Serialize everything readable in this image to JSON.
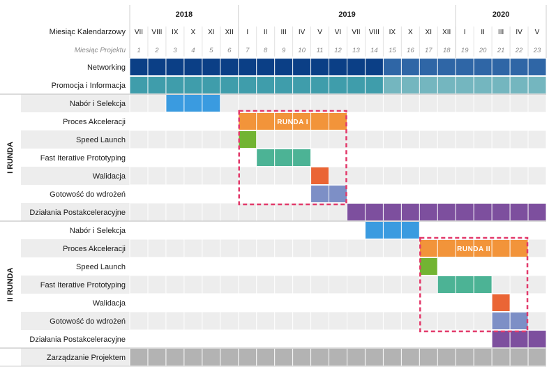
{
  "years": [
    {
      "label": "2018",
      "start": 1,
      "end": 6
    },
    {
      "label": "2019",
      "start": 7,
      "end": 18
    },
    {
      "label": "2020",
      "start": 19,
      "end": 23
    }
  ],
  "header": {
    "calendar_label": "Miesiąc Kalendarzowy",
    "project_label": "Miesiąc Projektu",
    "calendar_months": [
      "VII",
      "VIII",
      "IX",
      "X",
      "XI",
      "XII",
      "I",
      "II",
      "III",
      "IV",
      "V",
      "VI",
      "VII",
      "VIII",
      "IX",
      "X",
      "XI",
      "XII",
      "I",
      "II",
      "III",
      "IV",
      "V"
    ],
    "project_months": [
      "1",
      "2",
      "3",
      "4",
      "5",
      "6",
      "7",
      "8",
      "9",
      "10",
      "11",
      "12",
      "13",
      "14",
      "15",
      "16",
      "17",
      "18",
      "19",
      "20",
      "21",
      "22",
      "23"
    ]
  },
  "groups": [
    {
      "label": "I RUNDA",
      "first_row": 2,
      "last_row": 8
    },
    {
      "label": "II RUNDA",
      "first_row": 9,
      "last_row": 15
    }
  ],
  "rows": [
    {
      "label": "Networking",
      "shade": false
    },
    {
      "label": "Promocja i Informacja",
      "shade": false
    },
    {
      "label": "Nabór i Selekcja",
      "shade": true
    },
    {
      "label": "Proces Akceleracji",
      "shade": false
    },
    {
      "label": "Speed Launch",
      "shade": true
    },
    {
      "label": "Fast Iterative Prototyping",
      "shade": false
    },
    {
      "label": "Walidacja",
      "shade": true
    },
    {
      "label": "Gotowość do wdrożeń",
      "shade": false
    },
    {
      "label": "Działania Postakceleracyjne",
      "shade": true
    },
    {
      "label": "Nabór i Selekcja",
      "shade": false
    },
    {
      "label": "Proces Akceleracji",
      "shade": true
    },
    {
      "label": "Speed Launch",
      "shade": false
    },
    {
      "label": "Fast Iterative Prototyping",
      "shade": true
    },
    {
      "label": "Walidacja",
      "shade": false
    },
    {
      "label": "Gotowość do wdrożeń",
      "shade": true
    },
    {
      "label": "Działania Postakceleracyjne",
      "shade": false
    },
    {
      "label": "Zarządzanie Projektem",
      "shade": true
    }
  ],
  "bars": [
    {
      "row": 0,
      "start": 1,
      "end": 14,
      "color": "#0b3f86"
    },
    {
      "row": 0,
      "start": 15,
      "end": 23,
      "color": "#2f66a6"
    },
    {
      "row": 1,
      "start": 1,
      "end": 14,
      "color": "#3f9dab"
    },
    {
      "row": 1,
      "start": 15,
      "end": 23,
      "color": "#74b6bf"
    },
    {
      "row": 2,
      "start": 3,
      "end": 5,
      "color": "#3a9be0"
    },
    {
      "row": 3,
      "start": 7,
      "end": 12,
      "color": "#f2943a"
    },
    {
      "row": 4,
      "start": 7,
      "end": 7,
      "color": "#72b432"
    },
    {
      "row": 5,
      "start": 8,
      "end": 10,
      "color": "#4cb395"
    },
    {
      "row": 6,
      "start": 11,
      "end": 11,
      "color": "#ea6535"
    },
    {
      "row": 7,
      "start": 11,
      "end": 12,
      "color": "#7d8fc6"
    },
    {
      "row": 8,
      "start": 13,
      "end": 23,
      "color": "#7d4f9e"
    },
    {
      "row": 9,
      "start": 14,
      "end": 16,
      "color": "#3a9be0"
    },
    {
      "row": 10,
      "start": 17,
      "end": 22,
      "color": "#f2943a"
    },
    {
      "row": 11,
      "start": 17,
      "end": 17,
      "color": "#72b432"
    },
    {
      "row": 12,
      "start": 18,
      "end": 20,
      "color": "#4cb395"
    },
    {
      "row": 13,
      "start": 21,
      "end": 21,
      "color": "#ea6535"
    },
    {
      "row": 14,
      "start": 21,
      "end": 22,
      "color": "#7d8fc6"
    },
    {
      "row": 15,
      "start": 21,
      "end": 23,
      "color": "#7d4f9e"
    },
    {
      "row": 16,
      "start": 1,
      "end": 23,
      "color": "#b3b3b3"
    }
  ],
  "rounds": [
    {
      "label": "RUNDA I",
      "label_row": 3,
      "label_start": 7,
      "label_end": 12,
      "box_start": 7,
      "box_end": 12,
      "box_top_row": 3,
      "box_bottom_row": 7
    },
    {
      "label": "RUNDA II",
      "label_row": 10,
      "label_start": 17,
      "label_end": 22,
      "box_start": 17,
      "box_end": 22,
      "box_top_row": 10,
      "box_bottom_row": 14
    }
  ],
  "colors": {
    "round_box": "#e23a6b",
    "round_label": "#ffffff",
    "row_shade": "#ededed",
    "grid_line": "#ffffff",
    "separator": "#cfcfcf",
    "text": "#1a1a1a",
    "project_month_text": "#8a8a8a"
  }
}
